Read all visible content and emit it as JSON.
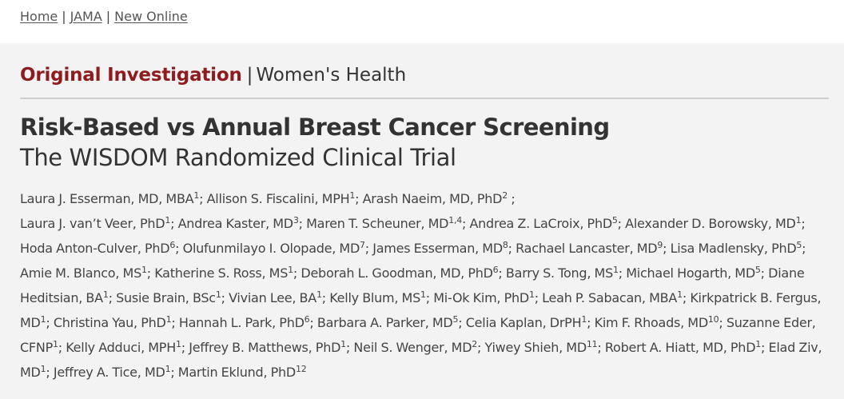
{
  "breadcrumb": {
    "items": [
      {
        "label": "Home"
      },
      {
        "label": "JAMA"
      },
      {
        "label": "New Online"
      }
    ],
    "separator": "|"
  },
  "article": {
    "category": "Original Investigation",
    "category_separator": "|",
    "subject": "Women's Health",
    "title": "Risk-Based vs Annual Breast Cancer Screening",
    "subtitle": "The WISDOM Randomized Clinical Trial",
    "colors": {
      "category": "#8f1b1e",
      "text": "#333333",
      "background": "#f3f3f3"
    },
    "authors": [
      {
        "name": "Laura J. Esserman, MD, MBA",
        "aff": "1"
      },
      {
        "name": "Allison S. Fiscalini, MPH",
        "aff": "1"
      },
      {
        "name": "Arash Naeim, MD, PhD",
        "aff": "2"
      },
      {
        "name": "Laura J. van’t Veer, PhD",
        "aff": "1"
      },
      {
        "name": "Andrea Kaster, MD",
        "aff": "3"
      },
      {
        "name": "Maren T. Scheuner, MD",
        "aff": "1,4"
      },
      {
        "name": "Andrea Z. LaCroix, PhD",
        "aff": "5"
      },
      {
        "name": "Alexander D. Borowsky, MD",
        "aff": "1"
      },
      {
        "name": "Hoda Anton-Culver, PhD",
        "aff": "6"
      },
      {
        "name": "Olufunmilayo I. Olopade, MD",
        "aff": "7"
      },
      {
        "name": "James Esserman, MD",
        "aff": "8"
      },
      {
        "name": "Rachael Lancaster, MD",
        "aff": "9"
      },
      {
        "name": "Lisa Madlensky, PhD",
        "aff": "5"
      },
      {
        "name": "Amie M. Blanco, MS",
        "aff": "1"
      },
      {
        "name": "Katherine S. Ross, MS",
        "aff": "1"
      },
      {
        "name": "Deborah L. Goodman, MD, PhD",
        "aff": "6"
      },
      {
        "name": "Barry S. Tong, MS",
        "aff": "1"
      },
      {
        "name": "Michael Hogarth, MD",
        "aff": "5"
      },
      {
        "name": "Diane Heditsian, BA",
        "aff": "1"
      },
      {
        "name": "Susie Brain, BSc",
        "aff": "1"
      },
      {
        "name": "Vivian Lee, BA",
        "aff": "1"
      },
      {
        "name": "Kelly Blum, MS",
        "aff": "1"
      },
      {
        "name": "Mi-Ok Kim, PhD",
        "aff": "1"
      },
      {
        "name": "Leah P. Sabacan, MBA",
        "aff": "1"
      },
      {
        "name": "Kirkpatrick B. Fergus, MD",
        "aff": "1"
      },
      {
        "name": "Christina Yau, PhD",
        "aff": "1"
      },
      {
        "name": "Hannah L. Park, PhD",
        "aff": "6"
      },
      {
        "name": "Barbara A. Parker, MD",
        "aff": "5"
      },
      {
        "name": "Celia Kaplan, DrPH",
        "aff": "1"
      },
      {
        "name": "Kim F. Rhoads, MD",
        "aff": "10"
      },
      {
        "name": "Suzanne Eder, CFNP",
        "aff": "1"
      },
      {
        "name": "Kelly Adduci, MPH",
        "aff": "1"
      },
      {
        "name": "Jeffrey B. Matthews, PhD",
        "aff": "1"
      },
      {
        "name": "Neil S. Wenger, MD",
        "aff": "2"
      },
      {
        "name": "Yiwey Shieh, MD",
        "aff": "11"
      },
      {
        "name": "Robert A. Hiatt, MD, PhD",
        "aff": "1"
      },
      {
        "name": "Elad Ziv, MD",
        "aff": "1"
      },
      {
        "name": "Jeffrey A. Tice, MD",
        "aff": "1"
      },
      {
        "name": "Martin Eklund, PhD",
        "aff": "12"
      }
    ]
  }
}
